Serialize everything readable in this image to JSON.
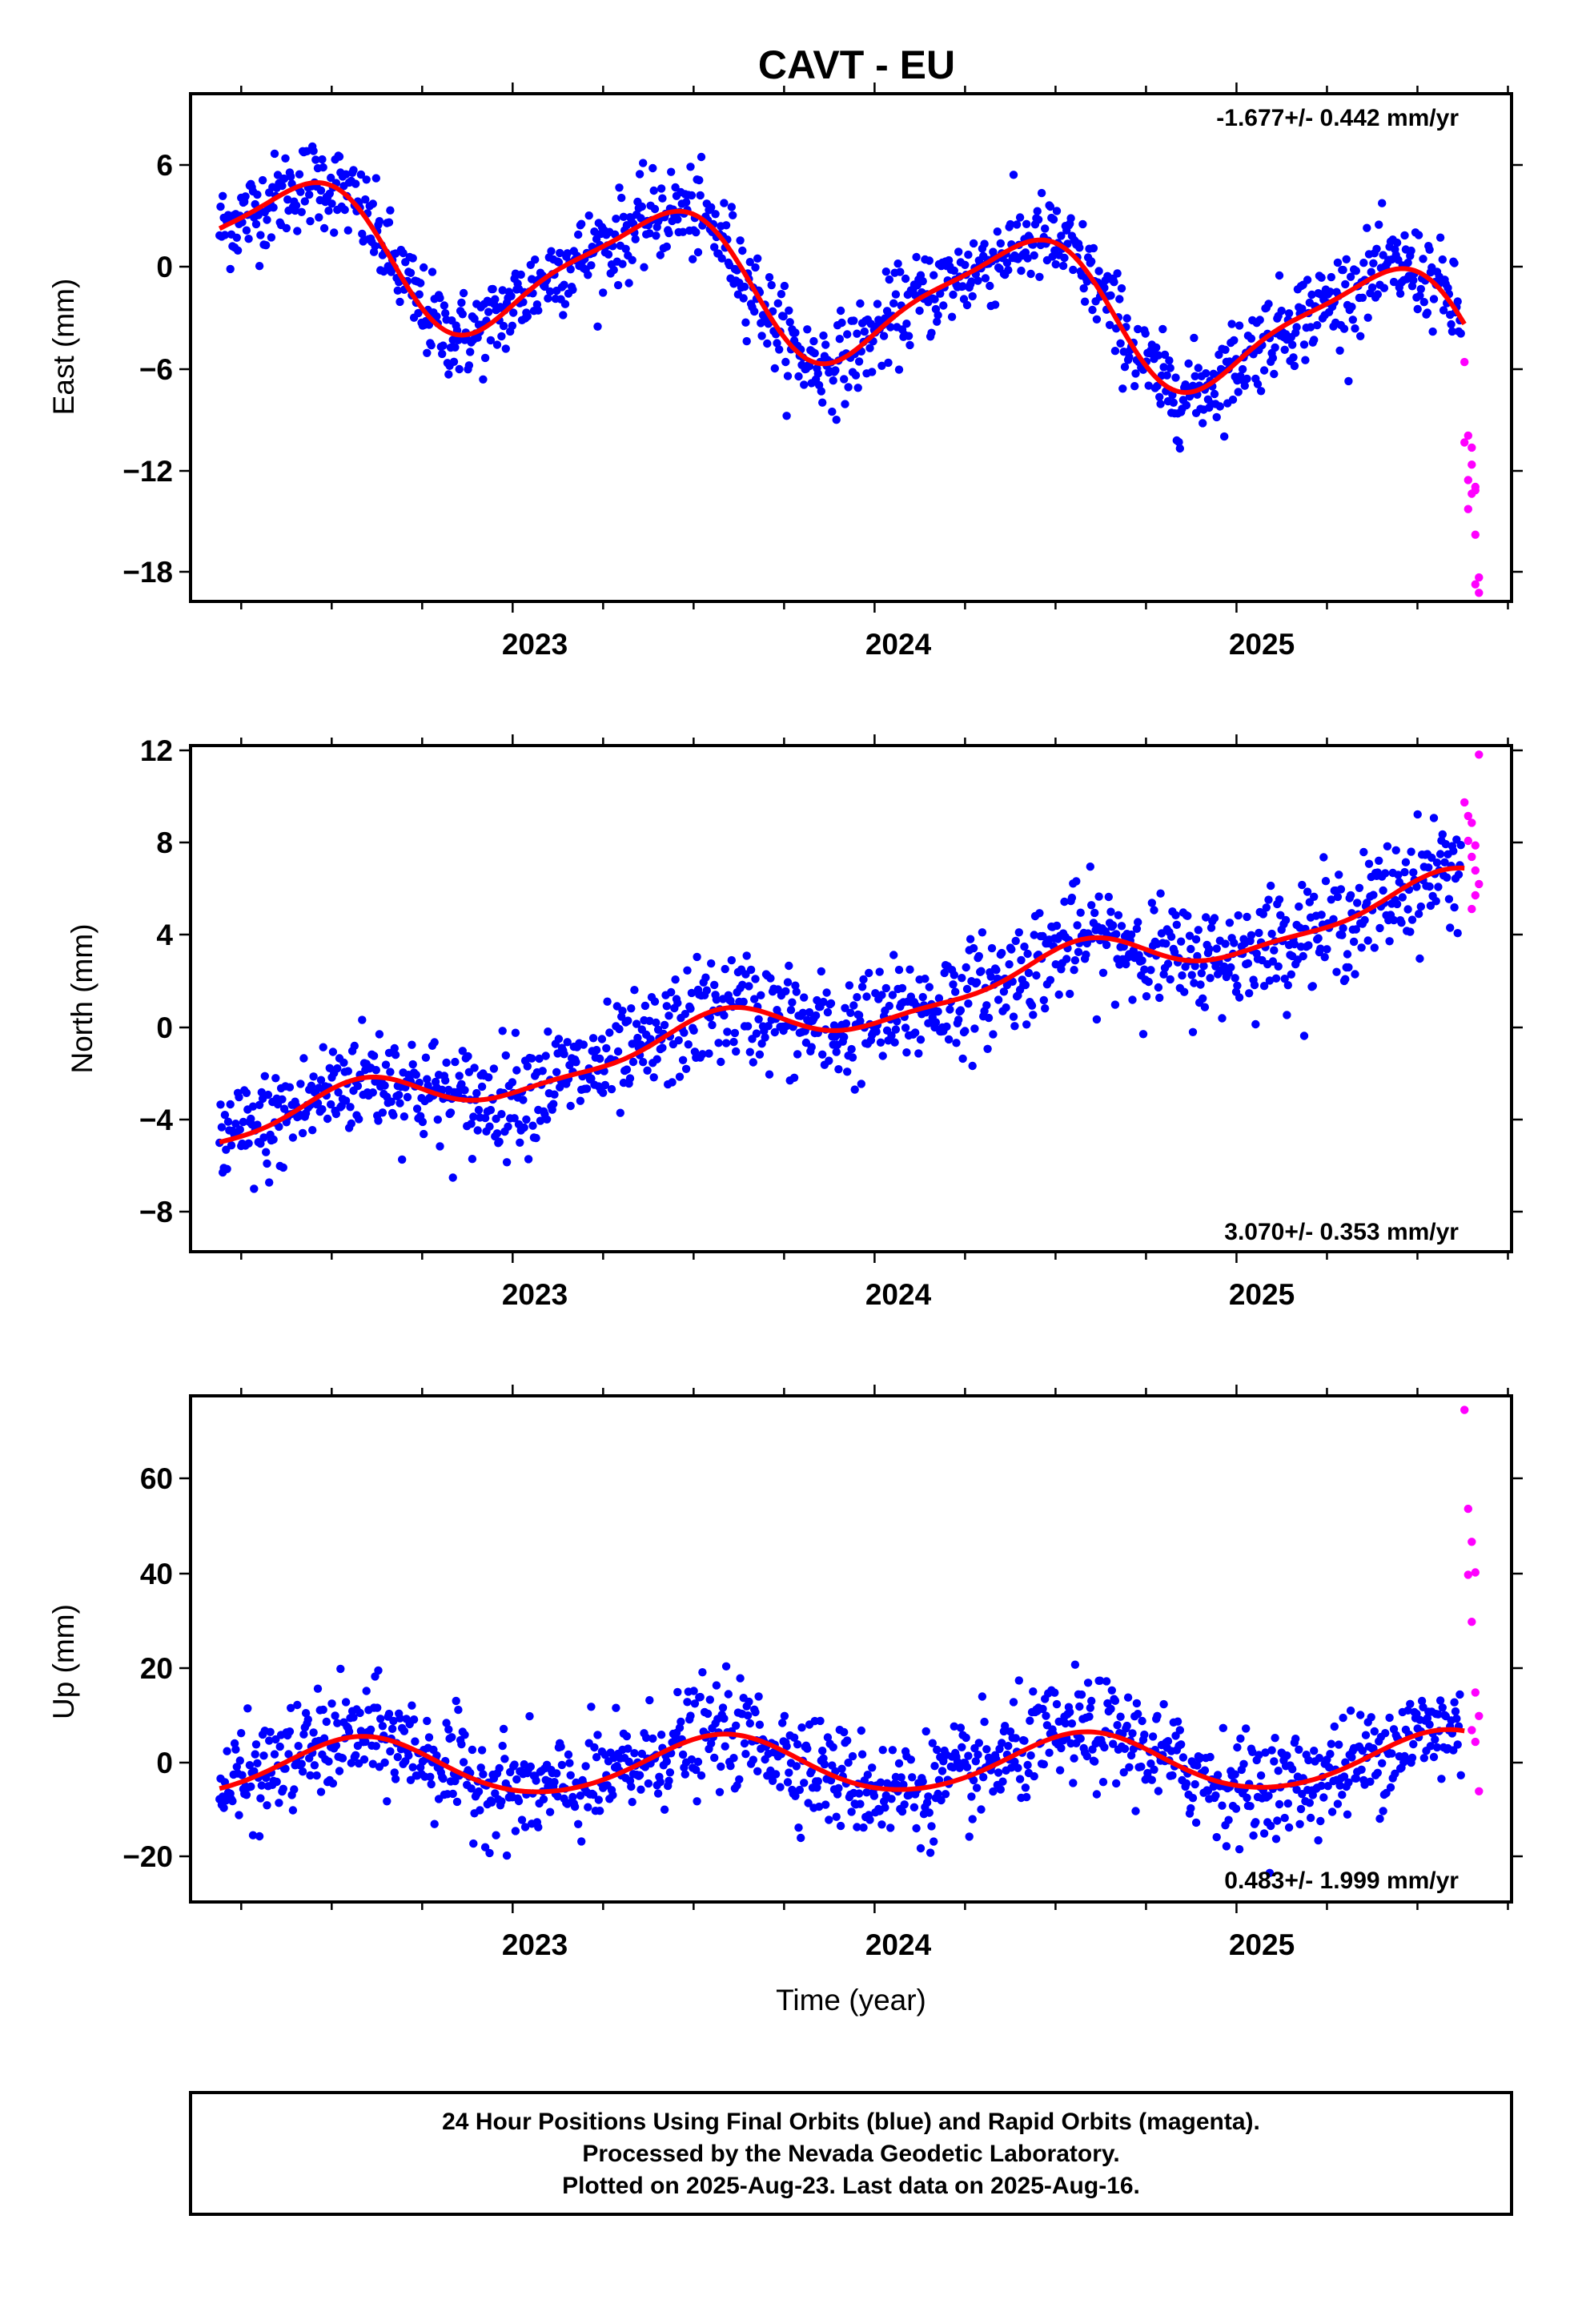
{
  "title": "CAVT - EU",
  "footer": {
    "lines": [
      "24 Hour Positions Using Final Orbits (blue) and Rapid Orbits (magenta).",
      "Processed by the Nevada Geodetic Laboratory.",
      "Plotted on 2025-Aug-23. Last data on 2025-Aug-16."
    ]
  },
  "colors": {
    "final": "#0000ff",
    "rapid": "#ff00ff",
    "model": "#ff0000",
    "frame": "#000000"
  },
  "chart_data": [
    {
      "type": "scatter",
      "title": "CAVT - EU",
      "ylabel": "East (mm)",
      "xlabel": "",
      "xlim": [
        2022.11,
        2025.76
      ],
      "ylim": [
        -19.5,
        10.2
      ],
      "xticks": [
        "2023",
        "2024",
        "2025"
      ],
      "yticks": [
        "6",
        "0",
        "−6",
        "−12",
        "−18"
      ],
      "rate": "-1.677+/- 0.442 mm/yr",
      "rate_position": "top-right",
      "model": {
        "offset": 1.52,
        "trend": -1.677,
        "annual_amp": 3.8,
        "annual_phase_year": 2022.4,
        "semiannual_amp": 0.9,
        "semiannual_phase_year": 2022.55,
        "scatter_sd": 1.3
      },
      "series": [
        {
          "name": "Final Orbits (blue)",
          "x_range": [
            2022.19,
            2025.62
          ],
          "count": 1150
        },
        {
          "name": "Rapid Orbits (magenta)",
          "x": [
            2025.63,
            2025.64,
            2025.63,
            2025.65,
            2025.64,
            2025.66,
            2025.65,
            2025.64,
            2025.66,
            2025.67,
            2025.66,
            2025.67,
            2025.65,
            2025.66
          ],
          "y": [
            -5.5,
            -9.8,
            -10.2,
            -11.5,
            -12.4,
            -12.8,
            -13.2,
            -14.1,
            -15.6,
            -18.1,
            -18.5,
            -19.0,
            -10.5,
            -13.0
          ]
        }
      ]
    },
    {
      "type": "scatter",
      "ylabel": "North (mm)",
      "xlabel": "",
      "xlim": [
        2022.11,
        2025.76
      ],
      "ylim": [
        -10.3,
        12.0
      ],
      "xticks": [
        "2023",
        "2024",
        "2025"
      ],
      "yticks": [
        "12",
        "8",
        "4",
        "0",
        "−4",
        "−8"
      ],
      "rate": "3.070+/- 0.353 mm/yr",
      "rate_position": "bottom-right",
      "model": {
        "offset": -5.0,
        "trend": 3.07,
        "annual_amp": 0.9,
        "annual_phase_year": 2022.55,
        "semiannual_amp": 0.3,
        "semiannual_phase_year": 2022.6,
        "scatter_sd": 1.2
      },
      "series": [
        {
          "name": "Final Orbits (blue)",
          "x_range": [
            2022.19,
            2025.62
          ],
          "count": 1150
        },
        {
          "name": "Rapid Orbits (magenta)",
          "x": [
            2025.63,
            2025.64,
            2025.65,
            2025.64,
            2025.66,
            2025.65,
            2025.66,
            2025.67,
            2025.66,
            2025.65,
            2025.67
          ],
          "y": [
            9.5,
            8.9,
            8.6,
            7.8,
            7.6,
            7.1,
            6.5,
            5.9,
            5.4,
            4.8,
            11.6
          ]
        }
      ]
    },
    {
      "type": "scatter",
      "ylabel": "Up (mm)",
      "xlabel": "Time (year)",
      "xlim": [
        2022.11,
        2025.76
      ],
      "ylim": [
        -29.5,
        78.0
      ],
      "xticks": [
        "2023",
        "2024",
        "2025"
      ],
      "yticks": [
        "60",
        "40",
        "20",
        "0",
        "−20"
      ],
      "rate": "0.483+/- 1.999 mm/yr",
      "rate_position": "bottom-right",
      "model": {
        "offset": -1.0,
        "trend": 0.483,
        "annual_amp": 6.0,
        "annual_phase_year": 2022.58,
        "semiannual_amp": 0.5,
        "semiannual_phase_year": 2022.6,
        "scatter_sd": 5.5
      },
      "series": [
        {
          "name": "Final Orbits (blue)",
          "x_range": [
            2022.19,
            2025.62
          ],
          "count": 1150
        },
        {
          "name": "Rapid Orbits (magenta)",
          "x": [
            2025.63,
            2025.64,
            2025.65,
            2025.64,
            2025.66,
            2025.65,
            2025.66,
            2025.67,
            2025.66,
            2025.67,
            2025.65
          ],
          "y": [
            75.0,
            54.0,
            47.0,
            40.0,
            40.5,
            30.0,
            15.0,
            10.0,
            4.5,
            -6.0,
            7.0
          ]
        }
      ]
    }
  ]
}
